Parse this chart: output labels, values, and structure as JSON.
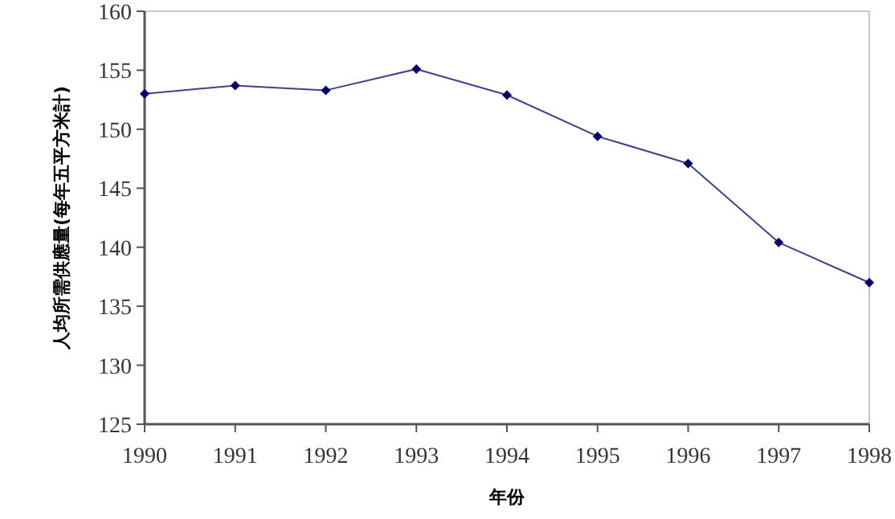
{
  "chart_data": {
    "type": "line",
    "xlabel": "年份",
    "ylabel": "人均所需供應量(每年五平方米計)",
    "x": [
      1990,
      1991,
      1992,
      1993,
      1994,
      1995,
      1996,
      1997,
      1998
    ],
    "values": [
      153.0,
      153.7,
      153.3,
      155.1,
      152.9,
      149.4,
      147.1,
      140.4,
      137.0
    ],
    "color": "#000066",
    "marker": "diamond",
    "xlim": [
      1990,
      1998
    ],
    "xticks": [
      1990,
      1991,
      1992,
      1993,
      1994,
      1995,
      1996,
      1997,
      1998
    ],
    "ylim": [
      125,
      160
    ],
    "yticks": [
      125,
      130,
      135,
      140,
      145,
      150,
      155,
      160
    ]
  }
}
